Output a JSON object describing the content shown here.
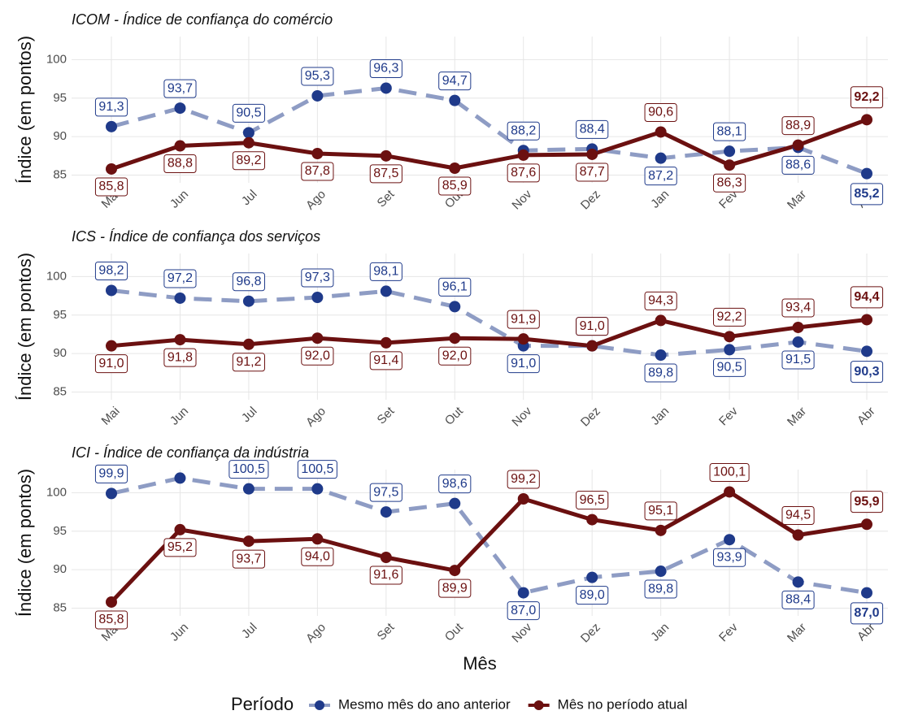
{
  "chart_data": [
    {
      "type": "line",
      "title": "ICOM - Índice de confiança do comércio",
      "ylabel": "Índice (em pontos)",
      "categories": [
        "Mai",
        "Jun",
        "Jul",
        "Ago",
        "Set",
        "Out",
        "Nov",
        "Dez",
        "Jan",
        "Fev",
        "Mar",
        "Abr"
      ],
      "ylim": [
        84,
        103
      ],
      "yticks": [
        85,
        90,
        95,
        100
      ],
      "grid": true,
      "series": [
        {
          "name": "Mesmo mês do ano anterior",
          "color": "#1f3a8a",
          "values": [
            91.3,
            93.7,
            90.5,
            95.3,
            96.3,
            94.7,
            88.2,
            88.4,
            87.2,
            88.1,
            88.6,
            85.2
          ],
          "value_labels": [
            "91,3",
            "93,7",
            "90,5",
            "95,3",
            "96,3",
            "94,7",
            "88,2",
            "88,4",
            "87,2",
            "88,1",
            "88,6",
            "85,2"
          ]
        },
        {
          "name": "Mês no período atual",
          "color": "#6b1010",
          "values": [
            85.8,
            88.8,
            89.2,
            87.8,
            87.5,
            85.9,
            87.6,
            87.7,
            90.6,
            86.3,
            88.9,
            92.2
          ],
          "value_labels": [
            "85,8",
            "88,8",
            "89,2",
            "87,8",
            "87,5",
            "85,9",
            "87,6",
            "87,7",
            "90,6",
            "86,3",
            "88,9",
            "92,2"
          ]
        }
      ]
    },
    {
      "type": "line",
      "title": "ICS - Índice de confiança dos serviços",
      "ylabel": "Índice (em pontos)",
      "categories": [
        "Mai",
        "Jun",
        "Jul",
        "Ago",
        "Set",
        "Out",
        "Nov",
        "Dez",
        "Jan",
        "Fev",
        "Mar",
        "Abr"
      ],
      "ylim": [
        84,
        103
      ],
      "yticks": [
        85,
        90,
        95,
        100
      ],
      "grid": true,
      "series": [
        {
          "name": "Mesmo mês do ano anterior",
          "color": "#1f3a8a",
          "values": [
            98.2,
            97.2,
            96.8,
            97.3,
            98.1,
            96.1,
            91.0,
            91.0,
            89.8,
            90.5,
            91.5,
            90.3
          ],
          "value_labels": [
            "98,2",
            "97,2",
            "96,8",
            "97,3",
            "98,1",
            "96,1",
            "91,0",
            "91,0",
            "89,8",
            "90,5",
            "91,5",
            "90,3"
          ]
        },
        {
          "name": "Mês no período atual",
          "color": "#6b1010",
          "values": [
            91.0,
            91.8,
            91.2,
            92.0,
            91.4,
            92.0,
            91.9,
            91.0,
            94.3,
            92.2,
            93.4,
            94.4
          ],
          "value_labels": [
            "91,0",
            "91,8",
            "91,2",
            "92,0",
            "91,4",
            "92,0",
            "91,9",
            "91,0",
            "94,3",
            "92,2",
            "93,4",
            "94,4"
          ]
        }
      ]
    },
    {
      "type": "line",
      "title": "ICI - Índice de confiança da indústria",
      "ylabel": "Índice (em pontos)",
      "xlabel": "Mês",
      "legend_title": "Período",
      "categories": [
        "Mai",
        "Jun",
        "Jul",
        "Ago",
        "Set",
        "Out",
        "Nov",
        "Dez",
        "Jan",
        "Fev",
        "Mar",
        "Abr"
      ],
      "ylim": [
        84,
        103
      ],
      "yticks": [
        85,
        90,
        95,
        100
      ],
      "grid": true,
      "series": [
        {
          "name": "Mesmo mês do ano anterior",
          "color": "#1f3a8a",
          "values": [
            99.9,
            101.9,
            100.5,
            100.5,
            97.5,
            98.6,
            87.0,
            89.0,
            89.8,
            93.9,
            88.4,
            87.0
          ],
          "value_labels": [
            "99,9",
            null,
            "100,5",
            "100,5",
            "97,5",
            "98,6",
            "87,0",
            "89,0",
            "89,8",
            "93,9",
            "88,4",
            "87,0"
          ]
        },
        {
          "name": "Mês no período atual",
          "color": "#6b1010",
          "values": [
            85.8,
            95.2,
            93.7,
            94.0,
            91.6,
            89.9,
            99.2,
            96.5,
            95.1,
            100.1,
            94.5,
            95.9
          ],
          "value_labels": [
            "85,8",
            "95,2",
            "93,7",
            "94,0",
            "91,6",
            "89,9",
            "99,2",
            "96,5",
            "95,1",
            "100,1",
            "94,5",
            "95,9"
          ]
        }
      ]
    }
  ]
}
